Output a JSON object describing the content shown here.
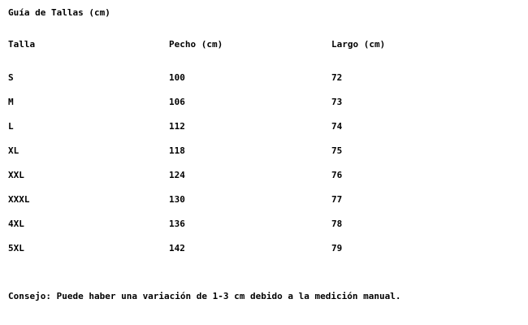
{
  "page": {
    "title": "Guía de Tallas (cm)",
    "note": "Consejo: Puede haber una variación de 1-3 cm debido a la medición manual."
  },
  "table": {
    "headers": [
      "Talla",
      "Pecho (cm)",
      "Largo (cm)"
    ],
    "rows": [
      {
        "talla": "S",
        "pecho": "100",
        "largo": "72"
      },
      {
        "talla": "M",
        "pecho": "106",
        "largo": "73"
      },
      {
        "talla": "L",
        "pecho": "112",
        "largo": "74"
      },
      {
        "talla": "XL",
        "pecho": "118",
        "largo": "75"
      },
      {
        "talla": "XXL",
        "pecho": "124",
        "largo": "76"
      },
      {
        "talla": "XXXL",
        "pecho": "130",
        "largo": "77"
      },
      {
        "talla": "4XL",
        "pecho": "136",
        "largo": "78"
      },
      {
        "talla": "5XL",
        "pecho": "142",
        "largo": "79"
      }
    ]
  },
  "colors": {
    "background": "#ffffff",
    "text": "#000000"
  }
}
